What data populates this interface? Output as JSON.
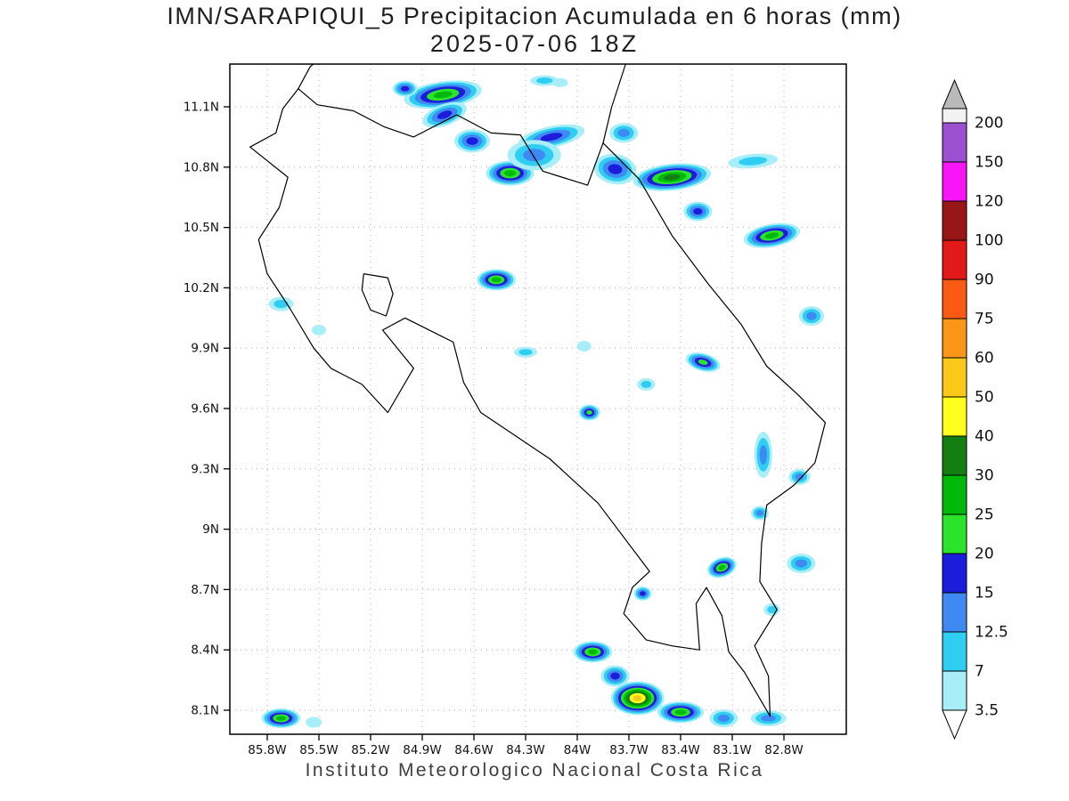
{
  "title": {
    "line1": "IMN/SARAPIQUI_5 Precipitacion Acumulada en 6 horas (mm)",
    "line2": "2025-07-06 18Z"
  },
  "footer": "Instituto Meteorologico Nacional Costa Rica",
  "colors": {
    "background": "#ffffff",
    "frame": "#000000",
    "coastline": "#000000",
    "grid": "#b0b0b0",
    "tick_text": "#111111"
  },
  "chart_data": {
    "type": "heatmap",
    "title": "IMN/SARAPIQUI_5 Precipitacion Acumulada en 6 horas (mm)",
    "subtitle": "2025-07-06 18Z",
    "variable": "Precipitacion Acumulada en 6 horas",
    "units": "mm",
    "region": "Costa Rica",
    "grid": true,
    "x_ticks": [
      "85.8W",
      "85.5W",
      "85.2W",
      "84.9W",
      "84.6W",
      "84.3W",
      "84W",
      "83.7W",
      "83.4W",
      "83.1W",
      "82.8W"
    ],
    "y_ticks": [
      "11.1N",
      "10.8N",
      "10.5N",
      "10.2N",
      "9.9N",
      "9.6N",
      "9.3N",
      "9N",
      "8.7N",
      "8.4N",
      "8.1N"
    ],
    "x_range_deg_west": [
      86.02,
      82.44
    ],
    "y_range_deg_north": [
      7.98,
      11.34
    ],
    "colorbar": {
      "position": "right",
      "levels": [
        3.5,
        7,
        12.5,
        15,
        20,
        25,
        30,
        40,
        50,
        60,
        75,
        90,
        100,
        120,
        150,
        200
      ],
      "band_colors_low_to_high": [
        "#a8eef8",
        "#2fcdf2",
        "#3f8af2",
        "#1c1cdb",
        "#2ae32a",
        "#00b807",
        "#137f13",
        "#ffff1f",
        "#fcc81a",
        "#fc9619",
        "#fa5a14",
        "#e11919",
        "#971616",
        "#f816f8",
        "#9a50cf"
      ],
      "above_cap_color": "#f2f2f2",
      "arrow_top_color": "#b9b9b9",
      "arrow_bottom_color": "#ffffff"
    },
    "coastline": {
      "main": [
        [
          85.71,
          11.09
        ],
        [
          85.62,
          11.19
        ],
        [
          85.51,
          11.11
        ],
        [
          85.3,
          11.08
        ],
        [
          85.12,
          11.0
        ],
        [
          84.95,
          10.95
        ],
        [
          84.7,
          11.06
        ],
        [
          84.5,
          10.97
        ],
        [
          84.33,
          10.96
        ],
        [
          84.2,
          10.78
        ],
        [
          83.94,
          10.71
        ],
        [
          83.85,
          10.92
        ],
        [
          83.64,
          10.74
        ],
        [
          83.45,
          10.46
        ],
        [
          83.24,
          10.22
        ],
        [
          83.05,
          10.02
        ],
        [
          82.9,
          9.81
        ],
        [
          82.72,
          9.67
        ],
        [
          82.56,
          9.53
        ],
        [
          82.62,
          9.33
        ],
        [
          82.74,
          9.22
        ],
        [
          82.9,
          9.12
        ],
        [
          82.93,
          8.93
        ],
        [
          82.94,
          8.74
        ],
        [
          82.84,
          8.6
        ],
        [
          82.97,
          8.42
        ],
        [
          82.89,
          8.27
        ],
        [
          82.88,
          8.07
        ],
        [
          83.03,
          8.29
        ],
        [
          83.12,
          8.39
        ],
        [
          83.16,
          8.57
        ],
        [
          83.25,
          8.71
        ],
        [
          83.31,
          8.63
        ],
        [
          83.3,
          8.52
        ],
        [
          83.29,
          8.4
        ],
        [
          83.45,
          8.42
        ],
        [
          83.6,
          8.45
        ],
        [
          83.73,
          8.58
        ],
        [
          83.68,
          8.71
        ],
        [
          83.58,
          8.79
        ],
        [
          83.88,
          9.13
        ],
        [
          84.16,
          9.35
        ],
        [
          84.56,
          9.58
        ],
        [
          84.66,
          9.73
        ],
        [
          84.72,
          9.93
        ],
        [
          85.0,
          10.05
        ],
        [
          85.13,
          9.99
        ],
        [
          84.95,
          9.8
        ],
        [
          85.1,
          9.58
        ],
        [
          85.25,
          9.72
        ],
        [
          85.43,
          9.8
        ],
        [
          85.53,
          9.9
        ],
        [
          85.67,
          10.1
        ],
        [
          85.8,
          10.27
        ],
        [
          85.85,
          10.44
        ],
        [
          85.73,
          10.6
        ],
        [
          85.68,
          10.75
        ],
        [
          85.9,
          10.9
        ],
        [
          85.75,
          10.97
        ],
        [
          85.71,
          11.09
        ]
      ],
      "nicaragua_border_spur": [
        [
          85.62,
          11.19
        ],
        [
          85.55,
          11.3
        ],
        [
          85.46,
          11.36
        ]
      ],
      "nicaragua_caribbean_coast": [
        [
          83.85,
          10.92
        ],
        [
          83.8,
          11.1
        ],
        [
          83.72,
          11.31
        ]
      ],
      "gulf_island": [
        [
          85.24,
          10.27
        ],
        [
          85.1,
          10.25
        ],
        [
          85.07,
          10.17
        ],
        [
          85.11,
          10.06
        ],
        [
          85.2,
          10.09
        ],
        [
          85.25,
          10.19
        ],
        [
          85.24,
          10.27
        ]
      ]
    },
    "precip_cells_format": [
      "lon_deg_west",
      "lat_deg_north",
      "peak_mm_level",
      "rx_px",
      "ry_px",
      "rotation_deg"
    ],
    "precip_cells": [
      [
        84.78,
        11.16,
        25,
        44,
        15,
        -8
      ],
      [
        85.0,
        11.19,
        15,
        14,
        9,
        0
      ],
      [
        84.77,
        11.06,
        15,
        26,
        12,
        -20
      ],
      [
        84.61,
        10.93,
        15,
        20,
        13,
        0
      ],
      [
        84.39,
        10.77,
        25,
        27,
        14,
        0
      ],
      [
        84.15,
        10.95,
        15,
        38,
        12,
        -12
      ],
      [
        84.19,
        11.23,
        7,
        16,
        6,
        0
      ],
      [
        84.1,
        11.22,
        3.5,
        9,
        5,
        0
      ],
      [
        83.73,
        10.97,
        12.5,
        16,
        11,
        0
      ],
      [
        83.78,
        10.79,
        15,
        24,
        17,
        10
      ],
      [
        84.25,
        10.86,
        12.5,
        30,
        17,
        0
      ],
      [
        83.45,
        10.75,
        30,
        44,
        15,
        -6
      ],
      [
        83.3,
        10.58,
        15,
        16,
        11,
        0
      ],
      [
        82.98,
        10.83,
        7,
        28,
        8,
        -5
      ],
      [
        82.87,
        10.46,
        25,
        32,
        13,
        -10
      ],
      [
        82.64,
        10.06,
        12.5,
        14,
        11,
        0
      ],
      [
        84.47,
        10.24,
        25,
        22,
        12,
        0
      ],
      [
        85.72,
        10.12,
        7,
        14,
        8,
        0
      ],
      [
        85.5,
        9.99,
        3.5,
        8,
        6,
        0
      ],
      [
        84.3,
        9.88,
        7,
        13,
        6,
        0
      ],
      [
        83.96,
        9.91,
        3.5,
        8,
        6,
        0
      ],
      [
        83.27,
        9.83,
        20,
        20,
        10,
        15
      ],
      [
        83.93,
        9.58,
        20,
        12,
        9,
        0
      ],
      [
        83.6,
        9.72,
        7,
        10,
        7,
        0
      ],
      [
        82.92,
        9.37,
        12.5,
        10,
        26,
        0
      ],
      [
        82.71,
        9.26,
        12.5,
        12,
        9,
        0
      ],
      [
        82.94,
        9.08,
        12.5,
        10,
        8,
        0
      ],
      [
        83.16,
        8.81,
        25,
        17,
        11,
        -20
      ],
      [
        82.7,
        8.83,
        12.5,
        16,
        11,
        0
      ],
      [
        83.62,
        8.68,
        15,
        10,
        8,
        0
      ],
      [
        82.87,
        8.6,
        7,
        9,
        7,
        0
      ],
      [
        83.91,
        8.39,
        25,
        22,
        12,
        0
      ],
      [
        83.78,
        8.27,
        15,
        16,
        12,
        0
      ],
      [
        83.65,
        8.16,
        50,
        30,
        19,
        0
      ],
      [
        83.4,
        8.09,
        25,
        26,
        12,
        0
      ],
      [
        83.15,
        8.06,
        12.5,
        16,
        10,
        0
      ],
      [
        82.89,
        8.06,
        12.5,
        20,
        9,
        0
      ],
      [
        85.72,
        8.06,
        25,
        22,
        11,
        0
      ],
      [
        85.53,
        8.04,
        3.5,
        9,
        6,
        0
      ]
    ]
  }
}
